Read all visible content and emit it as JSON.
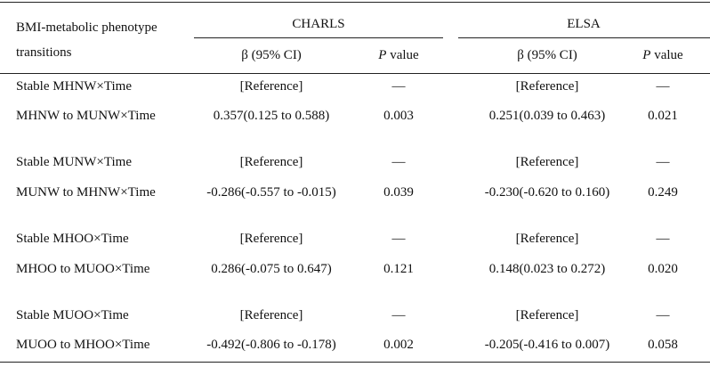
{
  "table": {
    "header": {
      "row_label": [
        "BMI-metabolic phenotype",
        "transitions"
      ],
      "groups": [
        "CHARLS",
        "ELSA"
      ],
      "columns": [
        {
          "text": "β (95% CI)"
        },
        {
          "symbol": "P",
          "text": "value"
        },
        {
          "text": "β (95% CI)"
        },
        {
          "symbol": "P",
          "text": "value"
        }
      ]
    },
    "rows": [
      [
        "Stable MHNW×Time",
        "[Reference]",
        "—",
        "[Reference]",
        "—"
      ],
      [
        "MHNW to MUNW×Time",
        "0.357(0.125 to 0.588)",
        "0.003",
        "0.251(0.039 to 0.463)",
        "0.021"
      ],
      [
        "Stable MUNW×Time",
        "[Reference]",
        "—",
        "[Reference]",
        "—"
      ],
      [
        "MUNW to MHNW×Time",
        "-0.286(-0.557 to -0.015)",
        "0.039",
        "-0.230(-0.620 to 0.160)",
        "0.249"
      ],
      [
        "Stable MHOO×Time",
        "[Reference]",
        "—",
        "[Reference]",
        "—"
      ],
      [
        "MHOO to MUOO×Time",
        "0.286(-0.075 to 0.647)",
        "0.121",
        "0.148(0.023 to 0.272)",
        "0.020"
      ],
      [
        "Stable MUOO×Time",
        "[Reference]",
        "—",
        "[Reference]",
        "—"
      ],
      [
        "MUOO to MHOO×Time",
        "-0.492(-0.806 to -0.178)",
        "0.002",
        "-0.205(-0.416 to 0.007)",
        "0.058"
      ]
    ]
  }
}
